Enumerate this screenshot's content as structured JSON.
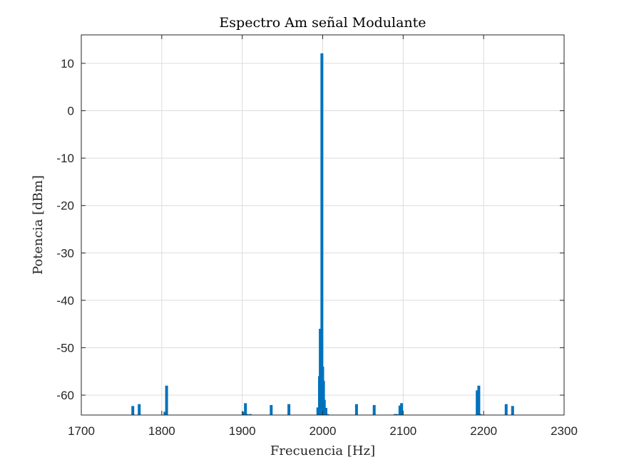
{
  "chart_data": {
    "type": "bar",
    "title": "Espectro Am señal Modulante",
    "xlabel": "Frecuencia [Hz]",
    "ylabel": "Potencia [dBm]",
    "xlim": [
      1700,
      2300
    ],
    "ylim": [
      -64.2,
      16
    ],
    "xticks": [
      1700,
      1800,
      1900,
      2000,
      2100,
      2200,
      2300
    ],
    "yticks": [
      10,
      0,
      -10,
      -20,
      -30,
      -40,
      -50,
      -60
    ],
    "grid": true,
    "baseline": -64.2,
    "color": "#0072bd",
    "series": [
      {
        "x": [
          1764,
          1772,
          1804,
          1806,
          1902,
          1904,
          1906,
          1910,
          1936,
          1958,
          1994,
          1996,
          1997,
          1998,
          1999,
          2000,
          2001,
          2002,
          2003,
          2004,
          2006,
          2042,
          2064,
          2090,
          2092,
          2096,
          2098,
          2192,
          2194,
          2196,
          2228,
          2236
        ],
        "y": [
          -62.3,
          -61.9,
          -63.5,
          -58.0,
          -63.5,
          -61.7,
          -64.0,
          -64.0,
          -62.1,
          -61.9,
          -62.6,
          -56.0,
          -46.0,
          -58.0,
          12.1,
          -54.0,
          -57.0,
          -61.0,
          -63.8,
          -62.7,
          -64.0,
          -61.9,
          -62.1,
          -64.0,
          -64.0,
          -62.2,
          -61.7,
          -59.0,
          -58.0,
          -64.0,
          -61.9,
          -62.3
        ]
      }
    ]
  }
}
